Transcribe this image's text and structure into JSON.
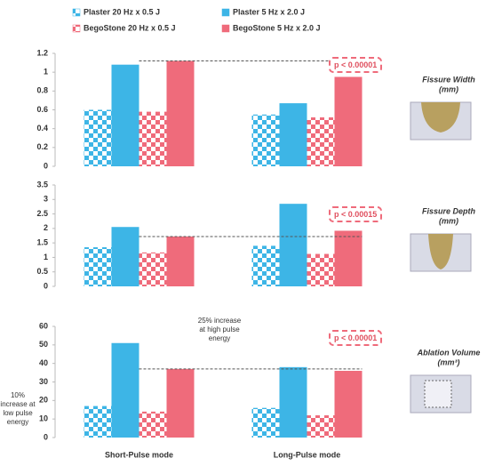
{
  "chart_data": [
    {
      "type": "bar",
      "title": "Fissure Width",
      "unit": "(mm)",
      "annotation": "p < 0.00001",
      "series": [
        {
          "name": "Plaster 20 Hz x 0.5 J",
          "color": "#3db5e6",
          "pattern": "checker",
          "values": [
            0.6,
            0.55
          ]
        },
        {
          "name": "Plaster 5 Hz x 2.0 J",
          "color": "#3db5e6",
          "pattern": "solid",
          "values": [
            1.08,
            0.67
          ]
        },
        {
          "name": "BegoStone 20 Hz x 0.5 J",
          "color": "#ef6b7b",
          "pattern": "checker",
          "values": [
            0.58,
            0.52
          ]
        },
        {
          "name": "BegoStone 5 Hz x 2.0 J",
          "color": "#ef6b7b",
          "pattern": "solid",
          "values": [
            1.12,
            0.95
          ]
        }
      ],
      "ylim": [
        0,
        1.2
      ],
      "yticks": [
        0,
        0.2,
        0.4,
        0.6,
        0.8,
        1,
        1.2
      ]
    },
    {
      "type": "bar",
      "title": "Fissure Depth",
      "unit": "(mm)",
      "annotation": "p < 0.00015",
      "series": [
        {
          "color": "#3db5e6",
          "pattern": "checker",
          "values": [
            1.35,
            1.4
          ]
        },
        {
          "color": "#3db5e6",
          "pattern": "solid",
          "values": [
            2.05,
            2.85
          ]
        },
        {
          "color": "#ef6b7b",
          "pattern": "checker",
          "values": [
            1.17,
            1.12
          ]
        },
        {
          "color": "#ef6b7b",
          "pattern": "solid",
          "values": [
            1.72,
            1.92
          ]
        }
      ],
      "ylim": [
        0,
        3.5
      ],
      "yticks": [
        0,
        0.5,
        1,
        1.5,
        2,
        2.5,
        3,
        3.5
      ]
    },
    {
      "type": "bar",
      "title": "Ablation Volume",
      "unit": "(mm³)",
      "annotation": "p < 0.00001",
      "categories": [
        "Short-Pulse mode",
        "Long-Pulse mode"
      ],
      "notes": [
        "25% increase at high pulse energy",
        "10% increase at low pulse energy"
      ],
      "series": [
        {
          "color": "#3db5e6",
          "pattern": "checker",
          "values": [
            17,
            16
          ]
        },
        {
          "color": "#3db5e6",
          "pattern": "solid",
          "values": [
            51,
            38
          ]
        },
        {
          "color": "#ef6b7b",
          "pattern": "checker",
          "values": [
            14,
            12
          ]
        },
        {
          "color": "#ef6b7b",
          "pattern": "solid",
          "values": [
            37,
            36
          ]
        }
      ],
      "ylim": [
        0,
        60
      ],
      "yticks": [
        0,
        10,
        20,
        30,
        40,
        50,
        60
      ]
    }
  ]
}
